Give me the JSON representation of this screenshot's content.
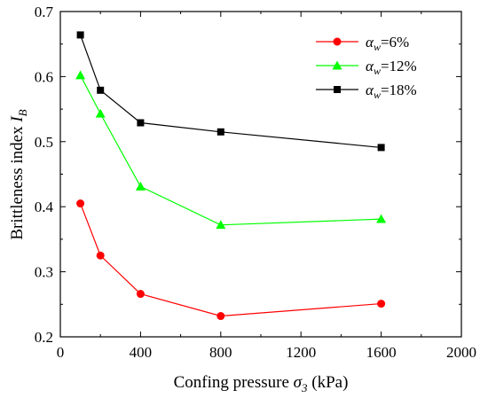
{
  "chart_data": {
    "type": "line",
    "title": "",
    "xlabel": {
      "prefix": "Confing pressure ",
      "symbol": "σ",
      "subscript": "3",
      "suffix": " (kPa)"
    },
    "ylabel": {
      "prefix": "Brittleness index ",
      "symbol": "I",
      "subscript": "B"
    },
    "xlim": [
      0,
      2000
    ],
    "ylim": [
      0.2,
      0.7
    ],
    "xticks": [
      0,
      400,
      800,
      1200,
      1600,
      2000
    ],
    "yticks": [
      0.2,
      0.3,
      0.4,
      0.5,
      0.6,
      0.7
    ],
    "xtick_labels": [
      "0",
      "400",
      "800",
      "1200",
      "1600",
      "2000"
    ],
    "ytick_labels": [
      "0.2",
      "0.3",
      "0.4",
      "0.5",
      "0.6",
      "0.7"
    ],
    "grid": false,
    "legend_position": "top-right",
    "x": [
      100,
      200,
      400,
      800,
      1600
    ],
    "series": [
      {
        "name": "αw=6%",
        "legend": {
          "symbol": "α",
          "subscript": "w",
          "text": "=6%"
        },
        "values": [
          0.405,
          0.325,
          0.266,
          0.232,
          0.251
        ],
        "color": "#ff0000",
        "marker": "circle"
      },
      {
        "name": "αw=12%",
        "legend": {
          "symbol": "α",
          "subscript": "w",
          "text": "=12%"
        },
        "values": [
          0.602,
          0.543,
          0.431,
          0.372,
          0.381
        ],
        "color": "#00ff00",
        "marker": "triangle"
      },
      {
        "name": "αw=18%",
        "legend": {
          "symbol": "α",
          "subscript": "w",
          "text": "=18%"
        },
        "values": [
          0.664,
          0.579,
          0.529,
          0.515,
          0.491
        ],
        "color": "#000000",
        "marker": "square"
      }
    ]
  }
}
